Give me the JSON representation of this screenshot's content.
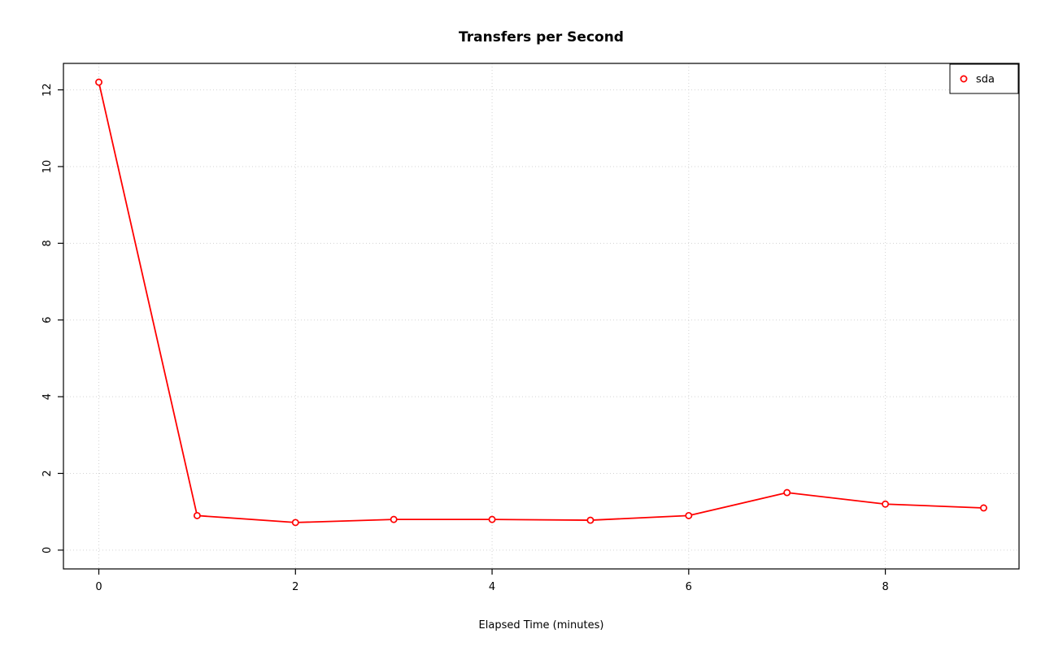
{
  "chart_data": {
    "type": "line",
    "title": "Transfers per Second",
    "xlabel": "Elapsed Time (minutes)",
    "ylabel": "",
    "series": [
      {
        "name": "sda",
        "color": "#ff0000",
        "marker": "open-circle",
        "x": [
          0,
          1,
          2,
          3,
          4,
          5,
          6,
          7,
          8,
          9
        ],
        "values": [
          12.2,
          0.9,
          0.72,
          0.8,
          0.8,
          0.78,
          0.9,
          1.5,
          1.2,
          1.1
        ]
      }
    ],
    "x_ticks": [
      0,
      2,
      4,
      6,
      8
    ],
    "y_ticks": [
      0,
      2,
      4,
      6,
      8,
      10,
      12
    ],
    "xlim": [
      -0.36,
      9.36
    ],
    "ylim": [
      -0.49,
      12.69
    ],
    "grid": true,
    "grid_color": "#d3d3d3",
    "grid_style": "dotted",
    "axis_color": "#000000",
    "background": "#ffffff",
    "legend": {
      "position": "top-right",
      "entries": [
        {
          "label": "sda",
          "color": "#ff0000"
        }
      ]
    }
  }
}
